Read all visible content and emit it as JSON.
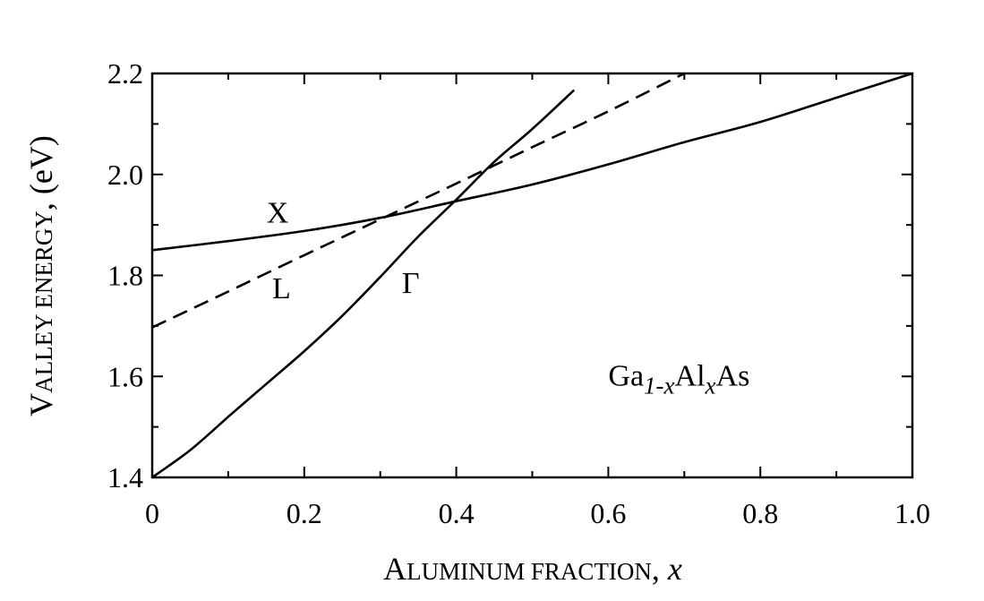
{
  "chart_data": {
    "type": "line",
    "title": "",
    "xlabel": {
      "smallcaps": "Aluminum fraction",
      "suffix": ", ",
      "variable": "x"
    },
    "ylabel": {
      "smallcaps": "Valley energy",
      "suffix": ", (eV)"
    },
    "xlim": [
      0,
      1.0
    ],
    "ylim": [
      1.4,
      2.2
    ],
    "xticks": [
      0,
      0.2,
      0.4,
      0.6,
      0.8,
      1.0
    ],
    "xtick_labels": [
      "0",
      "0.2",
      "0.4",
      "0.6",
      "0.8",
      "1.0"
    ],
    "yticks": [
      1.4,
      1.6,
      1.8,
      2.0,
      2.2
    ],
    "ytick_labels": [
      "1.4",
      "1.6",
      "1.8",
      "2.0",
      "2.2"
    ],
    "grid": false,
    "series": [
      {
        "name": "X",
        "style": "solid",
        "points": [
          [
            0,
            1.85
          ],
          [
            0.1,
            1.868
          ],
          [
            0.2,
            1.888
          ],
          [
            0.3,
            1.914
          ],
          [
            0.4,
            1.947
          ],
          [
            0.5,
            1.98
          ],
          [
            0.6,
            2.02
          ],
          [
            0.7,
            2.064
          ],
          [
            0.8,
            2.104
          ],
          [
            0.9,
            2.152
          ],
          [
            1.0,
            2.2
          ]
        ]
      },
      {
        "name": "L",
        "style": "dashed",
        "points": [
          [
            0,
            1.697
          ],
          [
            0.1,
            1.768
          ],
          [
            0.2,
            1.84
          ],
          [
            0.3,
            1.911
          ],
          [
            0.4,
            1.982
          ],
          [
            0.5,
            2.054
          ],
          [
            0.6,
            2.125
          ],
          [
            0.7,
            2.2
          ]
        ]
      },
      {
        "name": "Γ",
        "style": "solid",
        "points": [
          [
            0,
            1.4
          ],
          [
            0.05,
            1.454
          ],
          [
            0.1,
            1.52
          ],
          [
            0.15,
            1.585
          ],
          [
            0.2,
            1.65
          ],
          [
            0.25,
            1.72
          ],
          [
            0.3,
            1.797
          ],
          [
            0.35,
            1.877
          ],
          [
            0.4,
            1.95
          ],
          [
            0.45,
            2.025
          ],
          [
            0.5,
            2.09
          ],
          [
            0.555,
            2.167
          ]
        ]
      }
    ],
    "annotations": [
      {
        "text": "X",
        "x": 0.165,
        "y": 1.905
      },
      {
        "text": "L",
        "x": 0.17,
        "y": 1.755
      },
      {
        "text": "Γ",
        "x": 0.34,
        "y": 1.765
      }
    ],
    "formula": {
      "parts": [
        {
          "text": "Ga",
          "sub": false
        },
        {
          "text": "1-x",
          "sub": true
        },
        {
          "text": "Al",
          "sub": false
        },
        {
          "text": "x",
          "sub": true
        },
        {
          "text": "As",
          "sub": false
        }
      ],
      "x": 0.6,
      "y": 1.6
    }
  }
}
